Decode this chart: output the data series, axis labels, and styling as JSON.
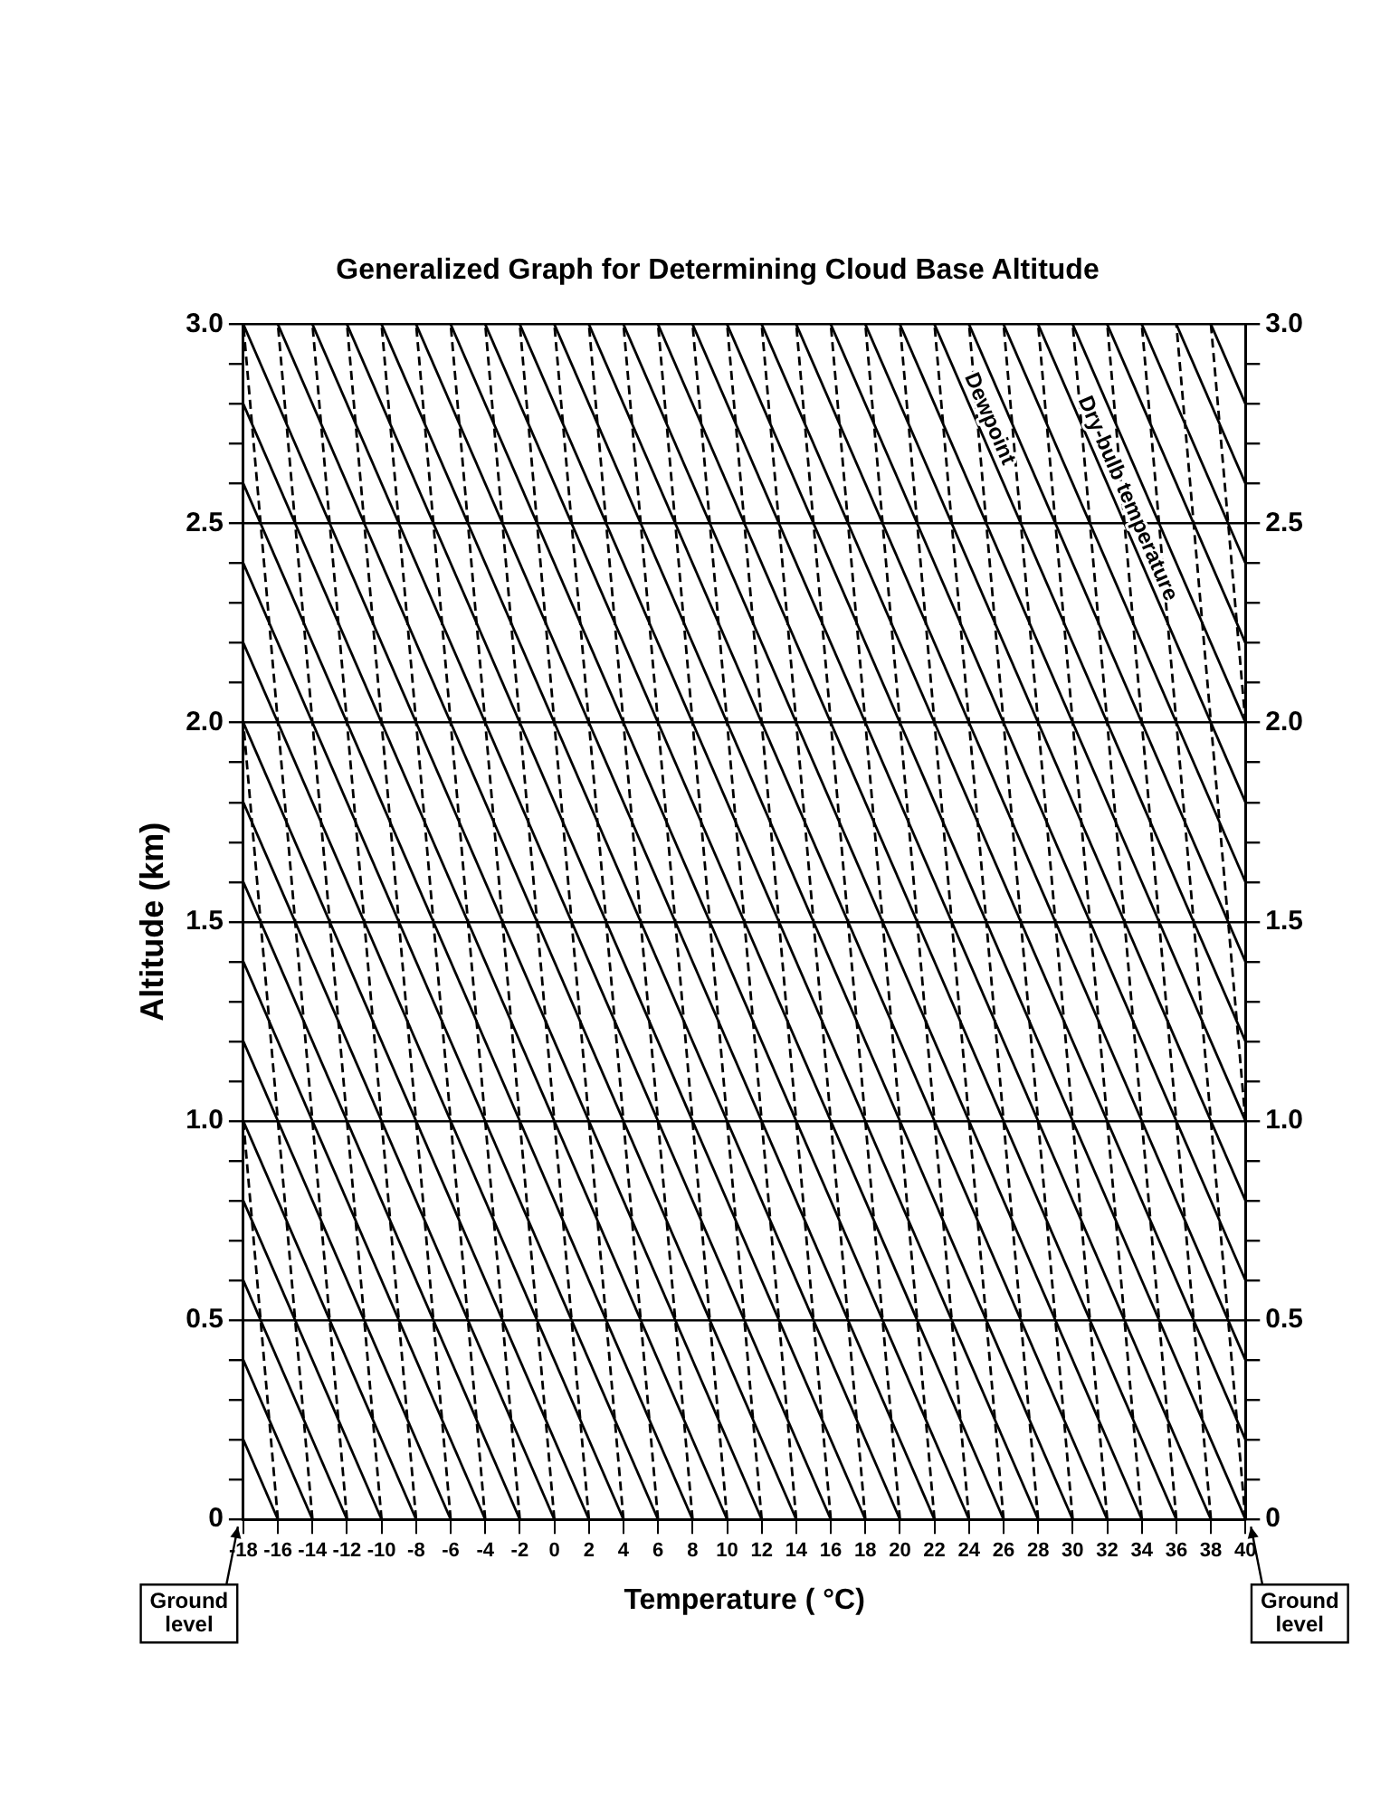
{
  "chart_data": {
    "type": "line",
    "title": "Generalized Graph for Determining Cloud Base Altitude",
    "xlabel": "Temperature ( °C)",
    "ylabel": "Altitude (km)",
    "xlim": [
      -18,
      40
    ],
    "xticks": [
      -18,
      -16,
      -14,
      -12,
      -10,
      -8,
      -6,
      -4,
      -2,
      0,
      2,
      4,
      6,
      8,
      10,
      12,
      14,
      16,
      18,
      20,
      22,
      24,
      26,
      28,
      30,
      32,
      34,
      36,
      38,
      40
    ],
    "ylim": [
      0,
      3
    ],
    "yticks": [
      0,
      {
        "value": 0.1,
        "label": null
      },
      {
        "value": 0.2,
        "label": null
      },
      {
        "value": 0.3,
        "label": null
      },
      {
        "value": 0.4,
        "label": null
      },
      0.5,
      {
        "value": 0.6,
        "label": null
      },
      {
        "value": 0.7,
        "label": null
      },
      {
        "value": 0.8,
        "label": null
      },
      {
        "value": 0.9,
        "label": null
      },
      {
        "value": 1,
        "label": "1.0"
      },
      {
        "value": 1.1,
        "label": null
      },
      {
        "value": 1.2,
        "label": null
      },
      {
        "value": 1.3,
        "label": null
      },
      {
        "value": 1.4,
        "label": null
      },
      1.5,
      {
        "value": 1.6,
        "label": null
      },
      {
        "value": 1.7,
        "label": null
      },
      {
        "value": 1.8,
        "label": null
      },
      {
        "value": 1.9,
        "label": null
      },
      {
        "value": 2,
        "label": "2.0"
      },
      {
        "value": 2.1,
        "label": null
      },
      {
        "value": 2.2,
        "label": null
      },
      {
        "value": 2.3,
        "label": null
      },
      {
        "value": 2.4,
        "label": null
      },
      2.5,
      {
        "value": 2.6,
        "label": null
      },
      {
        "value": 2.7,
        "label": null
      },
      {
        "value": 2.8,
        "label": null
      },
      {
        "value": 2.9,
        "label": null
      },
      {
        "value": 3,
        "label": "3.0"
      }
    ],
    "y2lim": [
      0,
      3
    ],
    "y2ticks": [
      0,
      {
        "value": 0.1,
        "label": null
      },
      {
        "value": 0.2,
        "label": null
      },
      {
        "value": 0.3,
        "label": null
      },
      {
        "value": 0.4,
        "label": null
      },
      0.5,
      {
        "value": 0.6,
        "label": null
      },
      {
        "value": 0.7,
        "label": null
      },
      {
        "value": 0.8,
        "label": null
      },
      {
        "value": 0.9,
        "label": null
      },
      {
        "value": 1,
        "label": "1.0"
      },
      {
        "value": 1.1,
        "label": null
      },
      {
        "value": 1.2,
        "label": null
      },
      {
        "value": 1.3,
        "label": null
      },
      {
        "value": 1.4,
        "label": null
      },
      1.5,
      {
        "value": 1.6,
        "label": null
      },
      {
        "value": 1.7,
        "label": null
      },
      {
        "value": 1.8,
        "label": null
      },
      {
        "value": 1.9,
        "label": null
      },
      {
        "value": 2,
        "label": "2.0"
      },
      {
        "value": 2.1,
        "label": null
      },
      {
        "value": 2.2,
        "label": null
      },
      {
        "value": 2.3,
        "label": null
      },
      {
        "value": 2.4,
        "label": null
      },
      2.5,
      {
        "value": 2.6,
        "label": null
      },
      {
        "value": 2.7,
        "label": null
      },
      {
        "value": 2.8,
        "label": null
      },
      {
        "value": 2.9,
        "label": null
      },
      {
        "value": 3,
        "label": "3.0"
      }
    ],
    "grid": "y",
    "legend": false,
    "marker": "none",
    "annotations": [
      {
        "text": "Dry-bulb temperature",
        "x": 32.5,
        "y": 2.55
      },
      {
        "text": "Dewpoint",
        "x": 24.5,
        "y": 2.75
      },
      "Ground level",
      "Ground level"
    ],
    "series": [
      {
        "color": "#000000",
        "line_style": "solid",
        "x": [
          -16,
          -18
        ],
        "values": [
          0,
          0.2
        ]
      },
      {
        "color": "#000000",
        "line_style": "solid",
        "x": [
          -14,
          -18
        ],
        "values": [
          0,
          0.4
        ]
      },
      {
        "color": "#000000",
        "line_style": "solid",
        "x": [
          -12,
          -18
        ],
        "values": [
          0,
          0.6
        ]
      },
      {
        "color": "#000000",
        "line_style": "solid",
        "x": [
          -10,
          -18
        ],
        "values": [
          0,
          0.8
        ]
      },
      {
        "color": "#000000",
        "line_style": "solid",
        "x": [
          -8,
          -18
        ],
        "values": [
          0,
          1
        ]
      },
      {
        "color": "#000000",
        "line_style": "solid",
        "x": [
          -6,
          -18
        ],
        "values": [
          0,
          1.2
        ]
      },
      {
        "color": "#000000",
        "line_style": "solid",
        "x": [
          -4,
          -18
        ],
        "values": [
          0,
          1.4
        ]
      },
      {
        "color": "#000000",
        "line_style": "solid",
        "x": [
          -2,
          -18
        ],
        "values": [
          0,
          1.6
        ]
      },
      {
        "color": "#000000",
        "line_style": "solid",
        "x": [
          0,
          -18
        ],
        "values": [
          0,
          1.8
        ]
      },
      {
        "color": "#000000",
        "line_style": "solid",
        "x": [
          2,
          -18
        ],
        "values": [
          0,
          2
        ]
      },
      {
        "color": "#000000",
        "line_style": "solid",
        "x": [
          4,
          -18
        ],
        "values": [
          0,
          2.2
        ]
      },
      {
        "color": "#000000",
        "line_style": "solid",
        "x": [
          6,
          -18
        ],
        "values": [
          0,
          2.4
        ]
      },
      {
        "color": "#000000",
        "line_style": "solid",
        "x": [
          8,
          -18
        ],
        "values": [
          0,
          2.6
        ]
      },
      {
        "color": "#000000",
        "line_style": "solid",
        "x": [
          10,
          -18
        ],
        "values": [
          0,
          2.8
        ]
      },
      {
        "color": "#000000",
        "line_style": "solid",
        "x": [
          12,
          -18
        ],
        "values": [
          0,
          3
        ]
      },
      {
        "color": "#000000",
        "line_style": "solid",
        "x": [
          14,
          -16
        ],
        "values": [
          0,
          3
        ]
      },
      {
        "color": "#000000",
        "line_style": "solid",
        "x": [
          16,
          -14
        ],
        "values": [
          0,
          3
        ]
      },
      {
        "color": "#000000",
        "line_style": "solid",
        "x": [
          18,
          -12
        ],
        "values": [
          0,
          3
        ]
      },
      {
        "color": "#000000",
        "line_style": "solid",
        "x": [
          20,
          -10
        ],
        "values": [
          0,
          3
        ]
      },
      {
        "color": "#000000",
        "line_style": "solid",
        "x": [
          22,
          -8
        ],
        "values": [
          0,
          3
        ]
      },
      {
        "color": "#000000",
        "line_style": "solid",
        "x": [
          24,
          -6
        ],
        "values": [
          0,
          3
        ]
      },
      {
        "color": "#000000",
        "line_style": "solid",
        "x": [
          26,
          -4
        ],
        "values": [
          0,
          3
        ]
      },
      {
        "color": "#000000",
        "line_style": "solid",
        "x": [
          28,
          -2
        ],
        "values": [
          0,
          3
        ]
      },
      {
        "color": "#000000",
        "line_style": "solid",
        "x": [
          30,
          0
        ],
        "values": [
          0,
          3
        ]
      },
      {
        "color": "#000000",
        "line_style": "solid",
        "x": [
          32,
          2
        ],
        "values": [
          0,
          3
        ]
      },
      {
        "color": "#000000",
        "line_style": "solid",
        "x": [
          34,
          4
        ],
        "values": [
          0,
          3
        ]
      },
      {
        "color": "#000000",
        "line_style": "solid",
        "x": [
          36,
          6
        ],
        "values": [
          0,
          3
        ]
      },
      {
        "color": "#000000",
        "line_style": "solid",
        "x": [
          38,
          8
        ],
        "values": [
          0,
          3
        ]
      },
      {
        "color": "#000000",
        "line_style": "solid",
        "x": [
          40,
          10
        ],
        "values": [
          0,
          3
        ]
      },
      {
        "color": "#000000",
        "line_style": "solid",
        "x": [
          40,
          12
        ],
        "values": [
          0.2,
          3
        ]
      },
      {
        "color": "#000000",
        "line_style": "solid",
        "x": [
          40,
          14
        ],
        "values": [
          0.4,
          3
        ]
      },
      {
        "color": "#000000",
        "line_style": "solid",
        "x": [
          40,
          16
        ],
        "values": [
          0.6,
          3
        ]
      },
      {
        "color": "#000000",
        "line_style": "solid",
        "x": [
          40,
          18
        ],
        "values": [
          0.8,
          3
        ]
      },
      {
        "color": "#000000",
        "line_style": "solid",
        "x": [
          40,
          20
        ],
        "values": [
          1,
          3
        ]
      },
      {
        "color": "#000000",
        "line_style": "solid",
        "x": [
          40,
          22
        ],
        "values": [
          1.2,
          3
        ]
      },
      {
        "color": "#000000",
        "line_style": "solid",
        "x": [
          40,
          24
        ],
        "values": [
          1.4,
          3
        ]
      },
      {
        "color": "#000000",
        "line_style": "solid",
        "x": [
          40,
          26
        ],
        "values": [
          1.6,
          3
        ]
      },
      {
        "color": "#000000",
        "line_style": "solid",
        "x": [
          40,
          28
        ],
        "values": [
          1.8,
          3
        ]
      },
      {
        "color": "#000000",
        "line_style": "solid",
        "x": [
          40,
          30
        ],
        "values": [
          2,
          3
        ]
      },
      {
        "color": "#000000",
        "line_style": "solid",
        "x": [
          40,
          32
        ],
        "values": [
          2.2,
          3
        ]
      },
      {
        "color": "#000000",
        "line_style": "solid",
        "x": [
          40,
          34
        ],
        "values": [
          2.4,
          3
        ]
      },
      {
        "color": "#000000",
        "line_style": "solid",
        "x": [
          40,
          36
        ],
        "values": [
          2.6,
          3
        ]
      },
      {
        "color": "#000000",
        "line_style": "solid",
        "x": [
          40,
          38
        ],
        "values": [
          2.8,
          3
        ]
      },
      {
        "color": "#000000",
        "line_style": "dashed",
        "x": [
          -16,
          -18
        ],
        "values": [
          0,
          1
        ]
      },
      {
        "color": "#000000",
        "line_style": "dashed",
        "x": [
          -14,
          -18
        ],
        "values": [
          0,
          2
        ]
      },
      {
        "color": "#000000",
        "line_style": "dashed",
        "x": [
          -12,
          -18
        ],
        "values": [
          0,
          3
        ]
      },
      {
        "color": "#000000",
        "line_style": "dashed",
        "x": [
          -10,
          -16
        ],
        "values": [
          0,
          3
        ]
      },
      {
        "color": "#000000",
        "line_style": "dashed",
        "x": [
          -8,
          -14
        ],
        "values": [
          0,
          3
        ]
      },
      {
        "color": "#000000",
        "line_style": "dashed",
        "x": [
          -6,
          -12
        ],
        "values": [
          0,
          3
        ]
      },
      {
        "color": "#000000",
        "line_style": "dashed",
        "x": [
          -4,
          -10
        ],
        "values": [
          0,
          3
        ]
      },
      {
        "color": "#000000",
        "line_style": "dashed",
        "x": [
          -2,
          -8
        ],
        "values": [
          0,
          3
        ]
      },
      {
        "color": "#000000",
        "line_style": "dashed",
        "x": [
          0,
          -6
        ],
        "values": [
          0,
          3
        ]
      },
      {
        "color": "#000000",
        "line_style": "dashed",
        "x": [
          2,
          -4
        ],
        "values": [
          0,
          3
        ]
      },
      {
        "color": "#000000",
        "line_style": "dashed",
        "x": [
          4,
          -2
        ],
        "values": [
          0,
          3
        ]
      },
      {
        "color": "#000000",
        "line_style": "dashed",
        "x": [
          6,
          0
        ],
        "values": [
          0,
          3
        ]
      },
      {
        "color": "#000000",
        "line_style": "dashed",
        "x": [
          8,
          2
        ],
        "values": [
          0,
          3
        ]
      },
      {
        "color": "#000000",
        "line_style": "dashed",
        "x": [
          10,
          4
        ],
        "values": [
          0,
          3
        ]
      },
      {
        "color": "#000000",
        "line_style": "dashed",
        "x": [
          12,
          6
        ],
        "values": [
          0,
          3
        ]
      },
      {
        "color": "#000000",
        "line_style": "dashed",
        "x": [
          14,
          8
        ],
        "values": [
          0,
          3
        ]
      },
      {
        "color": "#000000",
        "line_style": "dashed",
        "x": [
          16,
          10
        ],
        "values": [
          0,
          3
        ]
      },
      {
        "color": "#000000",
        "line_style": "dashed",
        "x": [
          18,
          12
        ],
        "values": [
          0,
          3
        ]
      },
      {
        "color": "#000000",
        "line_style": "dashed",
        "x": [
          20,
          14
        ],
        "values": [
          0,
          3
        ]
      },
      {
        "color": "#000000",
        "line_style": "dashed",
        "x": [
          22,
          16
        ],
        "values": [
          0,
          3
        ]
      },
      {
        "color": "#000000",
        "line_style": "dashed",
        "x": [
          24,
          18
        ],
        "values": [
          0,
          3
        ]
      },
      {
        "color": "#000000",
        "line_style": "dashed",
        "x": [
          26,
          20
        ],
        "values": [
          0,
          3
        ]
      },
      {
        "color": "#000000",
        "line_style": "dashed",
        "x": [
          28,
          22
        ],
        "values": [
          0,
          3
        ]
      },
      {
        "color": "#000000",
        "line_style": "dashed",
        "x": [
          30,
          24
        ],
        "values": [
          0,
          3
        ]
      },
      {
        "color": "#000000",
        "line_style": "dashed",
        "x": [
          32,
          26
        ],
        "values": [
          0,
          3
        ]
      },
      {
        "color": "#000000",
        "line_style": "dashed",
        "x": [
          34,
          28
        ],
        "values": [
          0,
          3
        ]
      },
      {
        "color": "#000000",
        "line_style": "dashed",
        "x": [
          36,
          30
        ],
        "values": [
          0,
          3
        ]
      },
      {
        "color": "#000000",
        "line_style": "dashed",
        "x": [
          38,
          32
        ],
        "values": [
          0,
          3
        ]
      },
      {
        "color": "#000000",
        "line_style": "dashed",
        "x": [
          40,
          34
        ],
        "values": [
          0,
          3
        ]
      },
      {
        "color": "#000000",
        "line_style": "dashed",
        "x": [
          40,
          36
        ],
        "values": [
          1,
          3
        ]
      },
      {
        "color": "#000000",
        "line_style": "dashed",
        "x": [
          40,
          38
        ],
        "values": [
          2,
          3
        ]
      }
    ]
  }
}
